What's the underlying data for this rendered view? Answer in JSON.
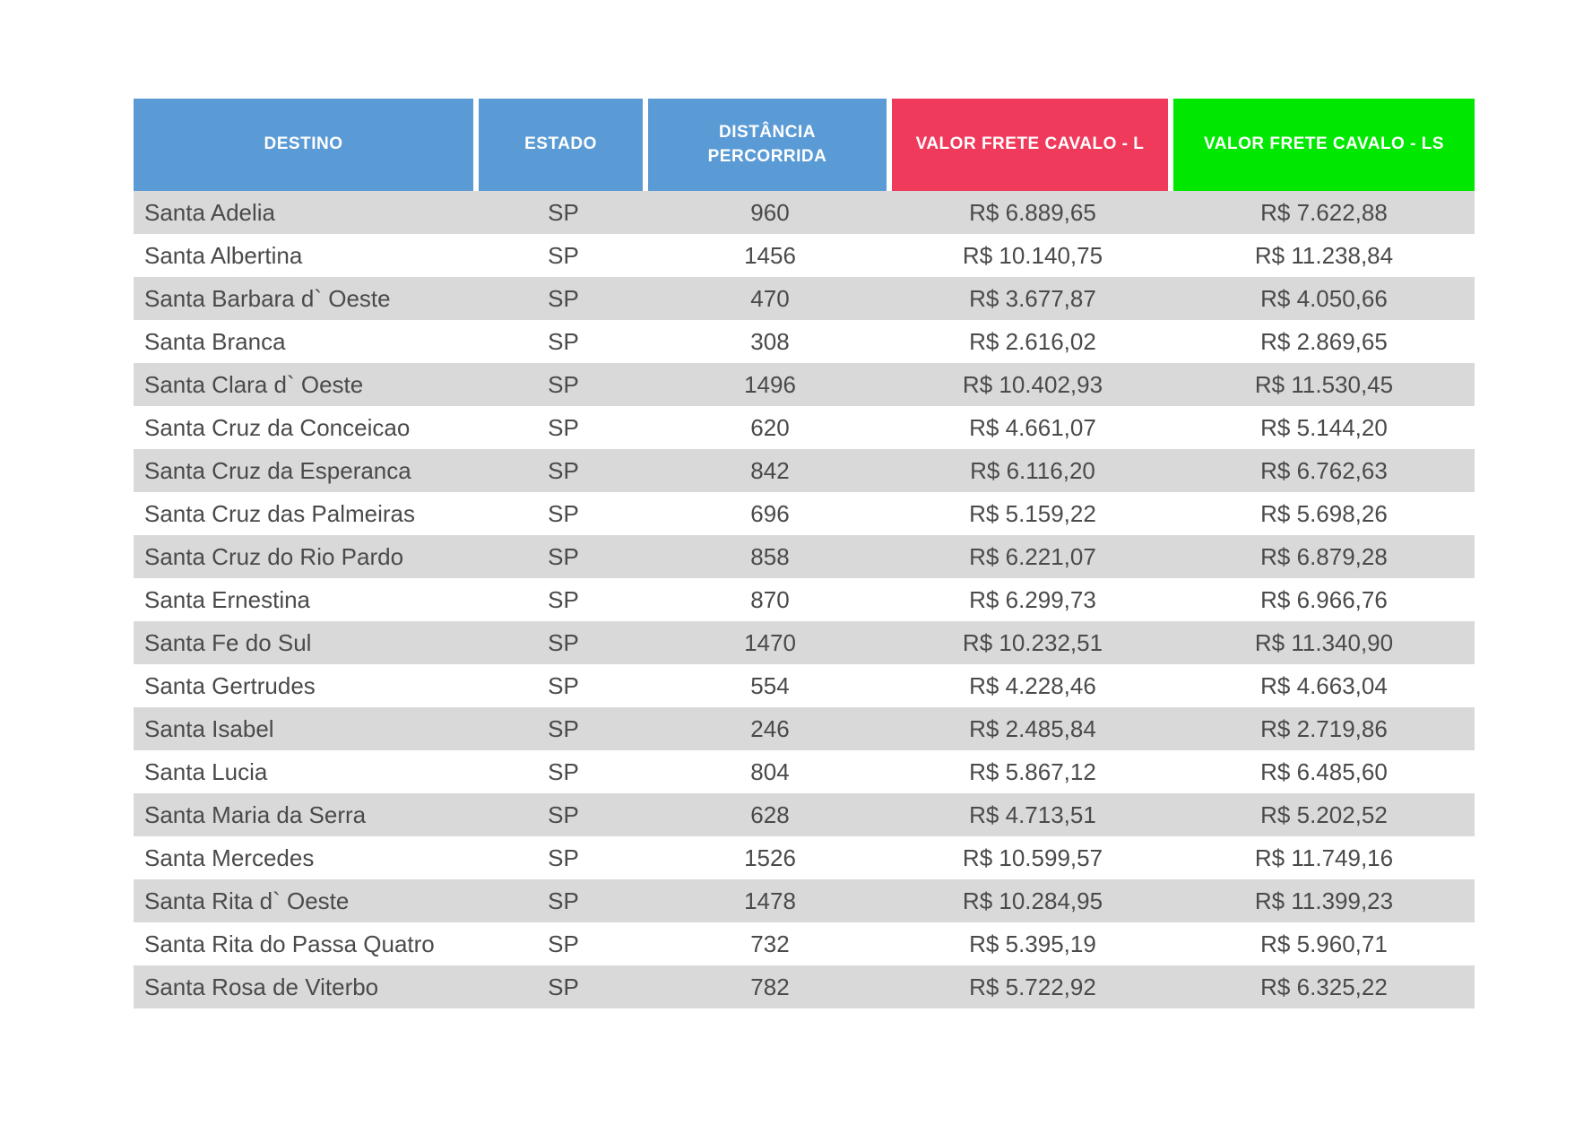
{
  "chart_data": {
    "type": "table",
    "title": "",
    "columns": [
      {
        "id": "destino",
        "label": "DESTINO",
        "color": "#5b9bd5",
        "align": "left"
      },
      {
        "id": "estado",
        "label": "ESTADO",
        "color": "#5b9bd5",
        "align": "center"
      },
      {
        "id": "distancia",
        "label": "DISTÂNCIA PERCORRIDA",
        "color": "#5b9bd5",
        "align": "center"
      },
      {
        "id": "frete_l",
        "label": "VALOR FRETE CAVALO - L",
        "color": "#ef3a5c",
        "align": "center"
      },
      {
        "id": "frete_ls",
        "label": "VALOR FRETE CAVALO - LS",
        "color": "#00e800",
        "align": "center"
      }
    ],
    "rows": [
      [
        "Santa Adelia",
        "SP",
        "960",
        "R$ 6.889,65",
        "R$ 7.622,88"
      ],
      [
        "Santa Albertina",
        "SP",
        "1456",
        "R$ 10.140,75",
        "R$ 11.238,84"
      ],
      [
        "Santa Barbara d` Oeste",
        "SP",
        "470",
        "R$ 3.677,87",
        "R$ 4.050,66"
      ],
      [
        "Santa Branca",
        "SP",
        "308",
        "R$ 2.616,02",
        "R$ 2.869,65"
      ],
      [
        "Santa Clara d` Oeste",
        "SP",
        "1496",
        "R$ 10.402,93",
        "R$ 11.530,45"
      ],
      [
        "Santa Cruz da Conceicao",
        "SP",
        "620",
        "R$ 4.661,07",
        "R$ 5.144,20"
      ],
      [
        "Santa Cruz da Esperanca",
        "SP",
        "842",
        "R$ 6.116,20",
        "R$ 6.762,63"
      ],
      [
        "Santa Cruz das Palmeiras",
        "SP",
        "696",
        "R$ 5.159,22",
        "R$ 5.698,26"
      ],
      [
        "Santa Cruz do Rio Pardo",
        "SP",
        "858",
        "R$ 6.221,07",
        "R$ 6.879,28"
      ],
      [
        "Santa Ernestina",
        "SP",
        "870",
        "R$ 6.299,73",
        "R$ 6.966,76"
      ],
      [
        "Santa Fe do Sul",
        "SP",
        "1470",
        "R$ 10.232,51",
        "R$ 11.340,90"
      ],
      [
        "Santa Gertrudes",
        "SP",
        "554",
        "R$ 4.228,46",
        "R$ 4.663,04"
      ],
      [
        "Santa Isabel",
        "SP",
        "246",
        "R$ 2.485,84",
        "R$ 2.719,86"
      ],
      [
        "Santa Lucia",
        "SP",
        "804",
        "R$ 5.867,12",
        "R$ 6.485,60"
      ],
      [
        "Santa Maria da Serra",
        "SP",
        "628",
        "R$ 4.713,51",
        "R$ 5.202,52"
      ],
      [
        "Santa Mercedes",
        "SP",
        "1526",
        "R$ 10.599,57",
        "R$ 11.749,16"
      ],
      [
        "Santa Rita d` Oeste",
        "SP",
        "1478",
        "R$ 10.284,95",
        "R$ 11.399,23"
      ],
      [
        "Santa Rita do Passa Quatro",
        "SP",
        "732",
        "R$ 5.395,19",
        "R$ 5.960,71"
      ],
      [
        "Santa Rosa de Viterbo",
        "SP",
        "782",
        "R$ 5.722,92",
        "R$ 6.325,22"
      ]
    ],
    "layout": {
      "row_stripe_colors": [
        "#d9d9d9",
        "#ffffff"
      ],
      "header_text_color": "#ffffff",
      "body_text_color": "#4a4a4a",
      "grid": "none",
      "legend": "none"
    }
  }
}
